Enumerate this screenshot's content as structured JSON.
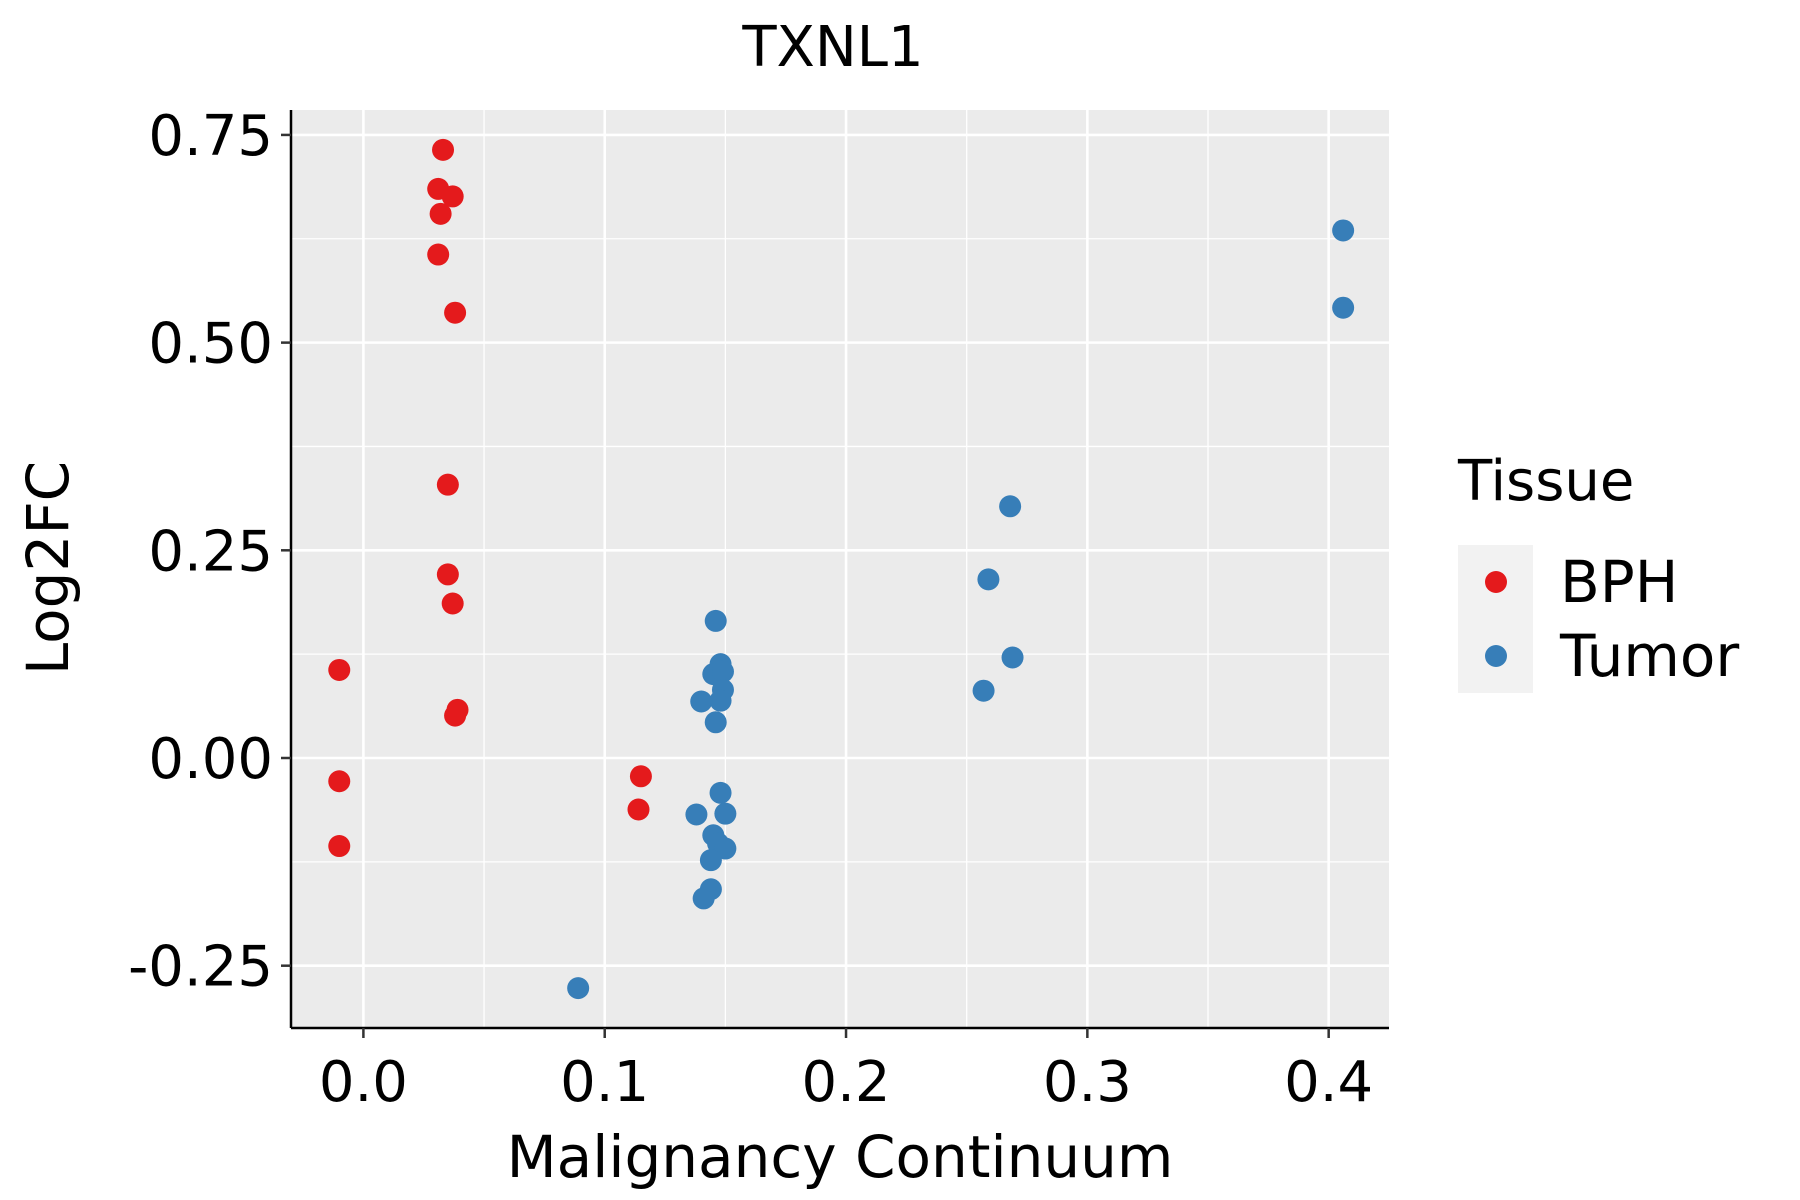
{
  "chart_data": {
    "type": "scatter",
    "title": "TXNL1",
    "xlabel": "Malignancy Continuum",
    "ylabel": "Log2FC",
    "xlim": [
      -0.03,
      0.425
    ],
    "ylim": [
      -0.325,
      0.78
    ],
    "x_ticks": [
      0.0,
      0.1,
      0.2,
      0.3,
      0.4
    ],
    "x_tick_labels": [
      "0.0",
      "0.1",
      "0.2",
      "0.3",
      "0.4"
    ],
    "y_ticks": [
      -0.25,
      0.0,
      0.25,
      0.5,
      0.75
    ],
    "y_tick_labels": [
      "-0.25",
      "0.00",
      "0.25",
      "0.50",
      "0.75"
    ],
    "grid": true,
    "legend": {
      "title": "Tissue",
      "position": "right"
    },
    "series": [
      {
        "name": "BPH",
        "color": "#E41A1C",
        "points": [
          {
            "x": 0.033,
            "y": 0.732
          },
          {
            "x": 0.031,
            "y": 0.685
          },
          {
            "x": 0.037,
            "y": 0.676
          },
          {
            "x": 0.032,
            "y": 0.655
          },
          {
            "x": 0.031,
            "y": 0.606
          },
          {
            "x": 0.038,
            "y": 0.536
          },
          {
            "x": 0.035,
            "y": 0.329
          },
          {
            "x": 0.035,
            "y": 0.221
          },
          {
            "x": 0.037,
            "y": 0.186
          },
          {
            "x": 0.039,
            "y": 0.058
          },
          {
            "x": 0.038,
            "y": 0.051
          },
          {
            "x": -0.01,
            "y": 0.106
          },
          {
            "x": -0.01,
            "y": -0.028
          },
          {
            "x": -0.01,
            "y": -0.106
          },
          {
            "x": 0.115,
            "y": -0.022
          },
          {
            "x": 0.114,
            "y": -0.062
          }
        ]
      },
      {
        "name": "Tumor",
        "color": "#377EB8",
        "points": [
          {
            "x": 0.406,
            "y": 0.635
          },
          {
            "x": 0.406,
            "y": 0.542
          },
          {
            "x": 0.268,
            "y": 0.303
          },
          {
            "x": 0.259,
            "y": 0.215
          },
          {
            "x": 0.269,
            "y": 0.121
          },
          {
            "x": 0.257,
            "y": 0.081
          },
          {
            "x": 0.146,
            "y": 0.165
          },
          {
            "x": 0.148,
            "y": 0.113
          },
          {
            "x": 0.145,
            "y": 0.101
          },
          {
            "x": 0.149,
            "y": 0.104
          },
          {
            "x": 0.149,
            "y": 0.082
          },
          {
            "x": 0.148,
            "y": 0.069
          },
          {
            "x": 0.14,
            "y": 0.068
          },
          {
            "x": 0.146,
            "y": 0.043
          },
          {
            "x": 0.148,
            "y": -0.042
          },
          {
            "x": 0.15,
            "y": -0.067
          },
          {
            "x": 0.138,
            "y": -0.068
          },
          {
            "x": 0.145,
            "y": -0.093
          },
          {
            "x": 0.147,
            "y": -0.103
          },
          {
            "x": 0.15,
            "y": -0.109
          },
          {
            "x": 0.144,
            "y": -0.123
          },
          {
            "x": 0.144,
            "y": -0.158
          },
          {
            "x": 0.141,
            "y": -0.169
          },
          {
            "x": 0.089,
            "y": -0.277
          }
        ]
      }
    ]
  }
}
